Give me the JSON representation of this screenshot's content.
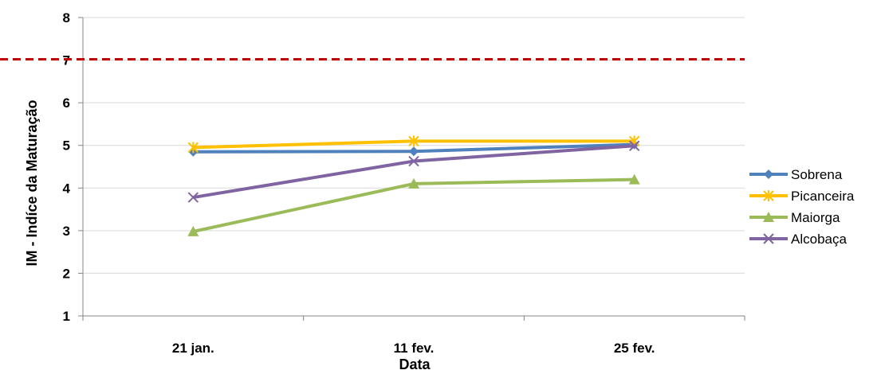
{
  "chart_data": {
    "type": "line",
    "title": "",
    "xlabel": "Data",
    "ylabel": "IM - Indíce da Maturação",
    "categories": [
      "21 jan.",
      "11 fev.",
      "25 fev."
    ],
    "ylim": [
      1,
      8
    ],
    "yticks": [
      1,
      2,
      3,
      4,
      5,
      6,
      7,
      8
    ],
    "grid": true,
    "legend_position": "right",
    "reference_line": {
      "value": 7.02,
      "color": "#c00000",
      "style": "dashed"
    },
    "series": [
      {
        "name": "Sobrena",
        "color": "#4f81bd",
        "marker": "diamond",
        "values": [
          4.85,
          4.86,
          5.02
        ]
      },
      {
        "name": "Picanceira",
        "color": "#ffc000",
        "marker": "star",
        "values": [
          4.95,
          5.1,
          5.1
        ]
      },
      {
        "name": "Maiorga",
        "color": "#9bbb59",
        "marker": "triangle",
        "values": [
          2.98,
          4.1,
          4.2
        ]
      },
      {
        "name": "Alcobaça",
        "color": "#8064a2",
        "marker": "x",
        "values": [
          3.78,
          4.63,
          4.99
        ]
      }
    ]
  }
}
